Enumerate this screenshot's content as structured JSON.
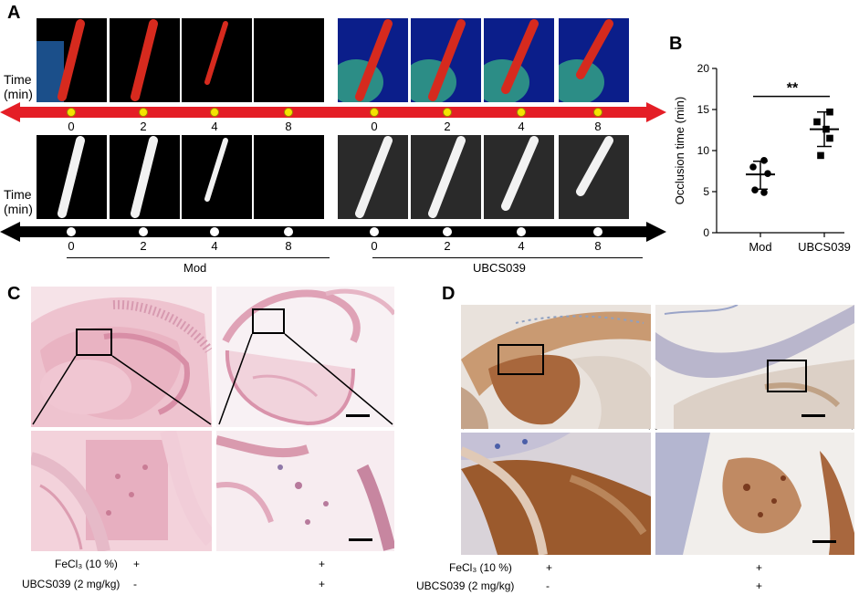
{
  "panelA": {
    "letter": "A",
    "time_label_line1": "Time",
    "time_label_line2": "(min)",
    "timepoints": [
      "0",
      "2",
      "4",
      "8",
      "0",
      "2",
      "4",
      "8"
    ],
    "group_mod": "Mod",
    "group_ubcs": "UBCS039",
    "arrow_color_top": "#e41e26",
    "arrow_color_bottom": "#000000",
    "dot_color_top": "#f5e400",
    "dot_color_bottom": "#ffffff"
  },
  "panelB": {
    "letter": "B"
  },
  "chart_data": {
    "type": "scatter",
    "title": "",
    "xlabel": "",
    "ylabel": "Occlusion time (min)",
    "ylim": [
      0,
      20
    ],
    "yticks": [
      "0",
      "5",
      "10",
      "15",
      "20"
    ],
    "categories": [
      "Mod",
      "UBCS039"
    ],
    "series": [
      {
        "category": "Mod",
        "marker": "circle",
        "values": [
          8.8,
          8.0,
          7.2,
          5.2,
          4.9
        ],
        "mean": 7.1,
        "sd_low": 5.3,
        "sd_high": 8.7
      },
      {
        "category": "UBCS039",
        "marker": "square",
        "values": [
          14.7,
          13.5,
          12.6,
          11.5,
          9.4
        ],
        "mean": 12.6,
        "sd_low": 10.5,
        "sd_high": 14.7
      }
    ],
    "significance": "**",
    "grid": false
  },
  "panelC": {
    "letter": "C",
    "row1_label": "FeCl₃ (10 %)",
    "row1_values": [
      "+",
      "+"
    ],
    "row2_label": "UBCS039 (2 mg/kg)",
    "row2_values": [
      "-",
      "+"
    ]
  },
  "panelD": {
    "letter": "D",
    "row1_label": "FeCl₃ (10 %)",
    "row1_values": [
      "+",
      "+"
    ],
    "row2_label": "UBCS039 (2 mg/kg)",
    "row2_values": [
      "-",
      "+"
    ]
  }
}
